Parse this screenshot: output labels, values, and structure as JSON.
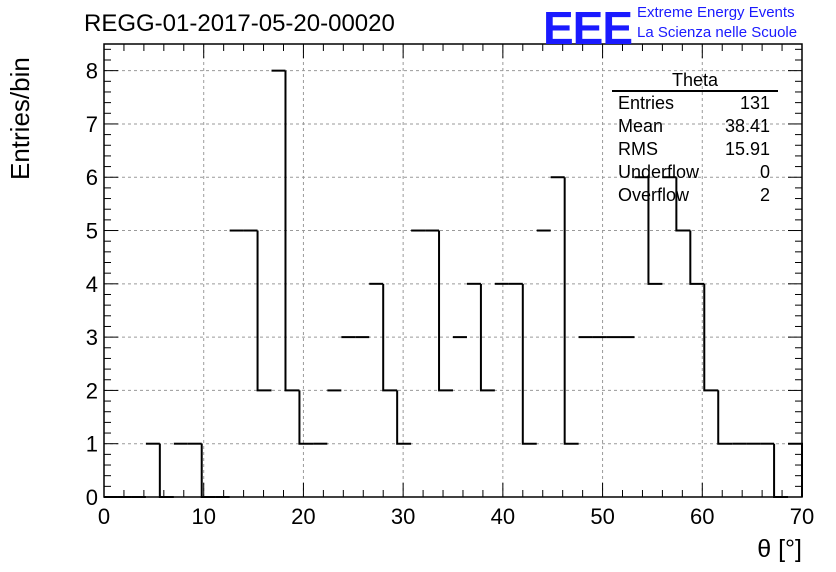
{
  "chart_data": {
    "type": "bar",
    "title": "REGG-01-2017-05-20-00020",
    "xlabel": "θ [°]",
    "ylabel": "Entries/bin",
    "xlim": [
      0,
      70
    ],
    "ylim": [
      0,
      8.5
    ],
    "xticks": [
      0,
      10,
      20,
      30,
      40,
      50,
      60,
      70
    ],
    "yticks": [
      0,
      1,
      2,
      3,
      4,
      5,
      6,
      7,
      8
    ],
    "grid": true,
    "bin_width": 1.4,
    "bin_edges_start": 0,
    "values": [
      0,
      0,
      0,
      1,
      0,
      1,
      1,
      0,
      0,
      5,
      5,
      2,
      8,
      2,
      1,
      1,
      2,
      3,
      3,
      4,
      2,
      1,
      5,
      5,
      2,
      3,
      4,
      2,
      4,
      4,
      1,
      5,
      6,
      1,
      3,
      3,
      3,
      3,
      6,
      4,
      6,
      5,
      4,
      2,
      1,
      1,
      1,
      1,
      0,
      1
    ],
    "stats_box": {
      "title": "Theta",
      "rows": [
        {
          "label": "Entries",
          "value": "131"
        },
        {
          "label": "Mean",
          "value": "38.41"
        },
        {
          "label": "RMS",
          "value": "15.91"
        },
        {
          "label": "Underflow",
          "value": "0"
        },
        {
          "label": "Overflow",
          "value": "2"
        }
      ]
    }
  },
  "logo": {
    "mark": "EEE",
    "line1": "Extreme Energy Events",
    "line2": "La Scienza nelle Scuole",
    "color": "#1a1aff"
  }
}
